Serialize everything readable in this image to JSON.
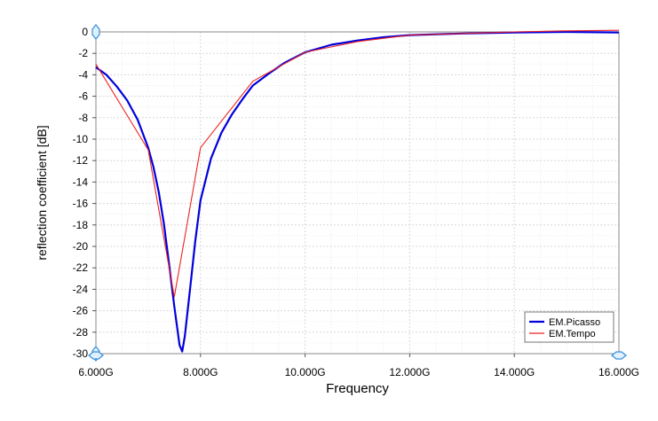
{
  "chart_data": {
    "type": "line",
    "xlabel": "Frequency",
    "ylabel": "reflection coefficient [dB]",
    "xlim": [
      6,
      16
    ],
    "ylim": [
      -30,
      0
    ],
    "xticks": [
      6,
      8,
      10,
      12,
      14,
      16
    ],
    "xtick_labels": [
      "6.000G",
      "8.000G",
      "10.000G",
      "12.000G",
      "14.000G",
      "16.000G"
    ],
    "yticks": [
      0,
      -2,
      -4,
      -6,
      -8,
      -10,
      -12,
      -14,
      -16,
      -18,
      -20,
      -22,
      -24,
      -26,
      -28,
      -30
    ],
    "ytick_labels": [
      "0",
      "-2",
      "-4",
      "-6",
      "-8",
      "-10",
      "-12",
      "-14",
      "-16",
      "-18",
      "-20",
      "-22",
      "-24",
      "-26",
      "-28",
      "-30"
    ],
    "grid": true,
    "legend_position": "bottom-right",
    "series": [
      {
        "name": "EM.Picasso",
        "color": "#0000dd",
        "x": [
          6.0,
          6.2,
          6.4,
          6.6,
          6.8,
          7.0,
          7.1,
          7.2,
          7.3,
          7.4,
          7.5,
          7.6,
          7.65,
          7.7,
          7.8,
          7.9,
          8.0,
          8.2,
          8.4,
          8.6,
          8.8,
          9.0,
          9.3,
          9.6,
          10.0,
          10.5,
          11.0,
          11.5,
          12.0,
          13.0,
          14.0,
          15.0,
          16.0
        ],
        "y": [
          -3.3,
          -4.0,
          -5.1,
          -6.4,
          -8.2,
          -10.8,
          -12.6,
          -14.9,
          -17.9,
          -21.7,
          -25.6,
          -29.2,
          -29.8,
          -28.4,
          -24.0,
          -19.5,
          -15.7,
          -11.8,
          -9.4,
          -7.7,
          -6.3,
          -5.0,
          -3.9,
          -2.9,
          -1.9,
          -1.2,
          -0.8,
          -0.5,
          -0.3,
          -0.15,
          -0.05,
          0.0,
          -0.05
        ]
      },
      {
        "name": "EM.Tempo",
        "color": "#ee2222",
        "x": [
          6.0,
          7.0,
          7.5,
          8.0,
          9.0,
          10.0,
          11.0,
          12.0,
          13.0,
          14.0,
          15.0,
          16.0
        ],
        "y": [
          -3.0,
          -11.0,
          -24.7,
          -10.8,
          -4.6,
          -1.9,
          -0.9,
          -0.3,
          -0.15,
          0.0,
          0.1,
          0.15
        ]
      }
    ]
  }
}
